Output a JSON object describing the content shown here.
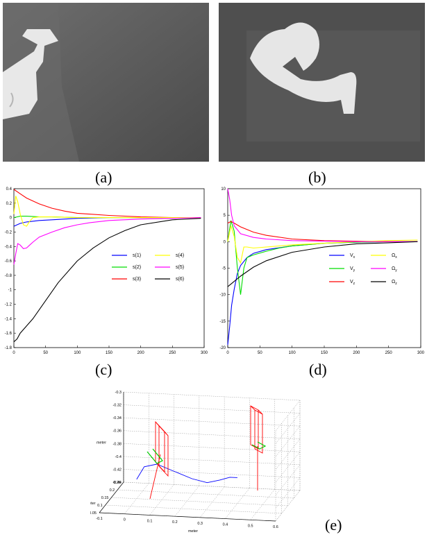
{
  "captions": {
    "a": "(a)",
    "b": "(b)",
    "c": "(c)",
    "d": "(d)",
    "e": "(e)"
  },
  "chart_data": [
    {
      "panel": "(c)",
      "type": "line",
      "xlim": [
        0,
        300
      ],
      "ylim": [
        -1.8,
        0.4
      ],
      "xticks": [
        0,
        50,
        100,
        150,
        200,
        250,
        300
      ],
      "yticks": [
        0.4,
        0.2,
        0,
        -0.2,
        -0.4,
        -0.6,
        -0.8,
        -1,
        -1.2,
        -1.4,
        -1.6,
        -1.8
      ],
      "legend_position": "center-right",
      "series": [
        {
          "name": "s(1)",
          "color": "#0000ff",
          "x": [
            0,
            5,
            10,
            20,
            40,
            60,
            100,
            150,
            200,
            250,
            295
          ],
          "y": [
            -0.12,
            -0.1,
            -0.08,
            -0.06,
            -0.04,
            -0.03,
            -0.01,
            0,
            0,
            0,
            0
          ]
        },
        {
          "name": "s(2)",
          "color": "#00dd00",
          "x": [
            0,
            5,
            10,
            20,
            40,
            60,
            100,
            150,
            200,
            250,
            295
          ],
          "y": [
            0,
            0.01,
            0.02,
            0.02,
            0.01,
            0.01,
            0,
            0,
            0,
            0,
            0
          ]
        },
        {
          "name": "s(3)",
          "color": "#ff0000",
          "x": [
            0,
            10,
            20,
            40,
            60,
            80,
            100,
            150,
            200,
            250,
            295
          ],
          "y": [
            0.39,
            0.33,
            0.27,
            0.19,
            0.13,
            0.09,
            0.06,
            0.03,
            0.01,
            0,
            0
          ]
        },
        {
          "name": "s(4)",
          "color": "#ffff00",
          "x": [
            0,
            3,
            6,
            10,
            15,
            20,
            25,
            30,
            40,
            60,
            100,
            150,
            200,
            295
          ],
          "y": [
            0.05,
            0.3,
            0.22,
            0.05,
            -0.1,
            -0.12,
            -0.05,
            0,
            0.01,
            0.01,
            0,
            0,
            0,
            0
          ]
        },
        {
          "name": "s(5)",
          "color": "#ff00ff",
          "x": [
            0,
            3,
            6,
            10,
            15,
            20,
            25,
            30,
            40,
            60,
            80,
            100,
            120,
            150,
            200,
            250,
            295
          ],
          "y": [
            -0.65,
            -0.5,
            -0.36,
            -0.38,
            -0.43,
            -0.42,
            -0.38,
            -0.34,
            -0.27,
            -0.2,
            -0.14,
            -0.1,
            -0.07,
            -0.04,
            -0.02,
            -0.01,
            0
          ]
        },
        {
          "name": "s(6)",
          "color": "#000000",
          "x": [
            0,
            5,
            10,
            20,
            30,
            50,
            70,
            100,
            125,
            150,
            175,
            200,
            250,
            295
          ],
          "y": [
            -1.72,
            -1.68,
            -1.6,
            -1.5,
            -1.4,
            -1.15,
            -0.9,
            -0.6,
            -0.42,
            -0.28,
            -0.18,
            -0.1,
            -0.03,
            -0.01
          ]
        }
      ]
    },
    {
      "panel": "(d)",
      "type": "line",
      "xlim": [
        0,
        300
      ],
      "ylim": [
        -20,
        10
      ],
      "xticks": [
        0,
        50,
        100,
        150,
        200,
        250,
        300
      ],
      "yticks": [
        10,
        5,
        0,
        -5,
        -10,
        -15,
        -20
      ],
      "legend_position": "center-right",
      "series": [
        {
          "name": "V",
          "sub": "x",
          "color": "#0000ff",
          "x": [
            0,
            3,
            6,
            10,
            15,
            20,
            30,
            40,
            60,
            100,
            150,
            200,
            250,
            295
          ],
          "y": [
            -19.5,
            -16,
            -12,
            -9,
            -6,
            -4.5,
            -3,
            -2.2,
            -1.5,
            -0.8,
            -0.3,
            -0.1,
            0,
            0
          ]
        },
        {
          "name": "V",
          "sub": "y",
          "color": "#00dd00",
          "x": [
            0,
            5,
            10,
            15,
            20,
            25,
            30,
            40,
            60,
            80,
            100,
            150,
            200,
            250,
            295
          ],
          "y": [
            0,
            4,
            2,
            -5,
            -10,
            -5,
            -3,
            -2.5,
            -1.8,
            -1.2,
            -0.8,
            -0.3,
            -0.1,
            0,
            0
          ]
        },
        {
          "name": "V",
          "sub": "z",
          "color": "#ff0000",
          "x": [
            0,
            5,
            10,
            20,
            40,
            60,
            100,
            150,
            200,
            250,
            295
          ],
          "y": [
            3.5,
            3.8,
            3.5,
            2.8,
            1.8,
            1.2,
            0.5,
            0.2,
            0.1,
            0,
            0
          ]
        },
        {
          "name": "Ω",
          "sub": "x",
          "color": "#ffff00",
          "x": [
            0,
            5,
            10,
            15,
            20,
            25,
            30,
            40,
            60,
            100,
            150,
            200,
            250,
            295
          ],
          "y": [
            0,
            3,
            1,
            -3,
            -4,
            -1,
            -1,
            -1.2,
            -1.0,
            -0.6,
            -0.3,
            0,
            0.2,
            0.3
          ]
        },
        {
          "name": "Ω",
          "sub": "y",
          "color": "#ff00ff",
          "x": [
            0,
            3,
            6,
            10,
            20,
            40,
            60,
            100,
            150,
            200,
            250,
            295
          ],
          "y": [
            10,
            8,
            5,
            3,
            1.5,
            0.8,
            0.5,
            0.2,
            0.1,
            0,
            0,
            0
          ]
        },
        {
          "name": "Ω",
          "sub": "z",
          "color": "#000000",
          "x": [
            0,
            5,
            10,
            20,
            40,
            60,
            100,
            150,
            200,
            250,
            295
          ],
          "y": [
            -8.5,
            -8,
            -7.5,
            -6.5,
            -4.8,
            -3.6,
            -2,
            -1,
            -0.4,
            -0.2,
            0
          ]
        }
      ]
    },
    {
      "panel": "(e)",
      "type": "line",
      "xlabel": "meter",
      "ylabel": "meter",
      "zlabel": "meter",
      "xlim": [
        -0.1,
        0.6
      ],
      "ylim": [
        0.05,
        0.25
      ],
      "zlim": [
        -0.44,
        -0.3
      ],
      "xticks": [
        "-0.1",
        "0",
        "0.1",
        "0.2",
        "0.3",
        "0.4",
        "0.5",
        "0.6"
      ],
      "yticks": [
        "0.05",
        "0.1",
        "0.15",
        "0.2",
        "0.25"
      ],
      "zticks": [
        "-0.3",
        "-0.32",
        "-0.34",
        "-0.36",
        "-0.38",
        "-0.4",
        "-0.42",
        "-0.44"
      ],
      "grid": true,
      "series": [
        {
          "name": "",
          "color": "#0000ff",
          "x": [
            0.0,
            0.03,
            0.08,
            0.15,
            0.22,
            0.28,
            0.33,
            0.37,
            0.4
          ],
          "y": [
            0.15,
            0.15,
            0.15,
            0.15,
            0.15,
            0.15,
            0.15,
            0.15,
            0.15
          ],
          "z": [
            -0.41,
            -0.39,
            -0.385,
            -0.395,
            -0.405,
            -0.41,
            -0.405,
            -0.4,
            -0.4
          ]
        }
      ]
    }
  ]
}
